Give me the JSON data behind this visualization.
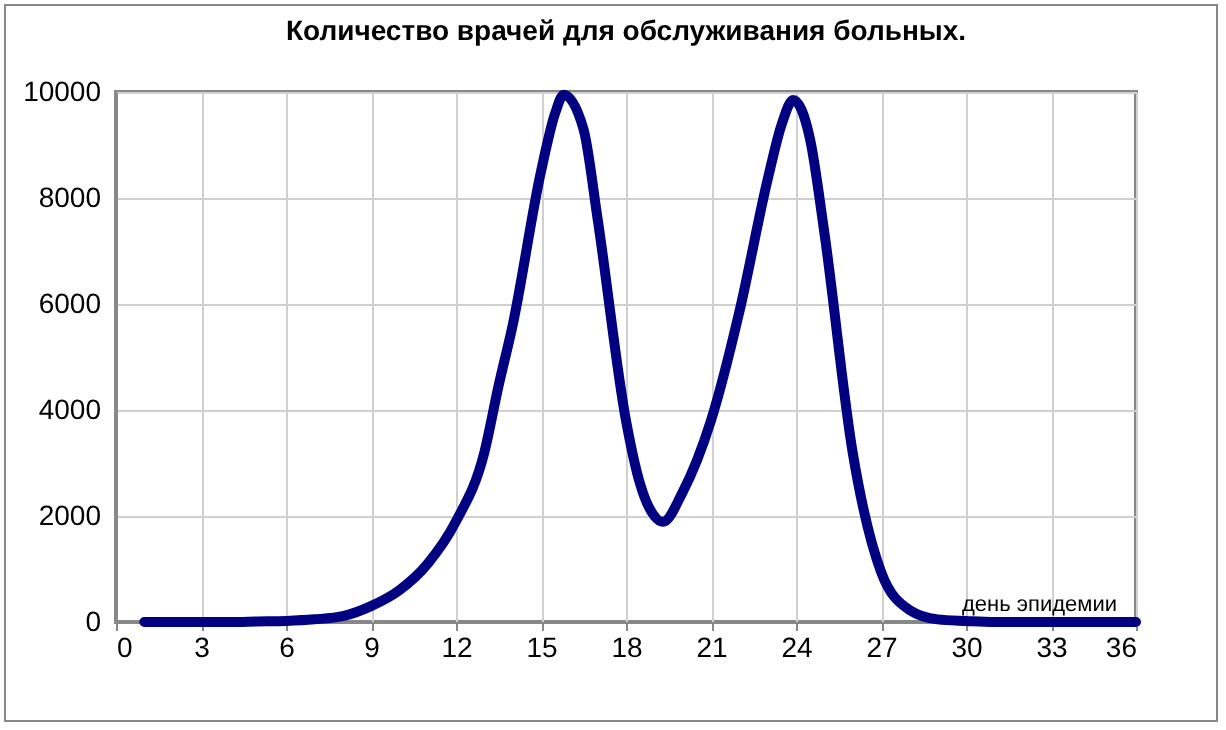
{
  "chart_data": {
    "type": "line",
    "title": "Количество врачей для обслуживания больных.",
    "xlabel": "день эпидемии",
    "x": [
      1,
      2,
      3,
      4,
      5,
      6,
      7,
      8,
      9,
      10,
      11,
      12,
      13,
      13.5,
      14,
      15,
      15.5,
      15.8,
      16.5,
      17,
      18,
      18.5,
      19,
      19.3,
      20,
      21,
      22,
      23,
      23.5,
      23.9,
      24.5,
      25,
      26,
      27,
      28,
      29,
      30,
      31,
      32,
      33,
      34,
      35,
      36
    ],
    "series": [
      {
        "color": "#000080",
        "values": [
          0,
          0,
          0,
          0,
          10,
          20,
          50,
          110,
          300,
          600,
          1100,
          1900,
          3200,
          4450,
          5600,
          8500,
          9600,
          9950,
          9300,
          7600,
          3800,
          2600,
          2000,
          1890,
          2450,
          3800,
          5850,
          8350,
          9400,
          9850,
          9100,
          7350,
          3200,
          950,
          230,
          50,
          20,
          0,
          0,
          0,
          0,
          0,
          0
        ]
      }
    ],
    "xlim": [
      0,
      36
    ],
    "xticks": [
      0,
      3,
      6,
      9,
      12,
      15,
      18,
      21,
      24,
      27,
      30,
      33,
      36
    ],
    "ylim": [
      0,
      10000
    ],
    "yticks": [
      0,
      2000,
      4000,
      6000,
      8000,
      10000
    ],
    "grid": true,
    "marker": "none",
    "line_style": "solid"
  }
}
